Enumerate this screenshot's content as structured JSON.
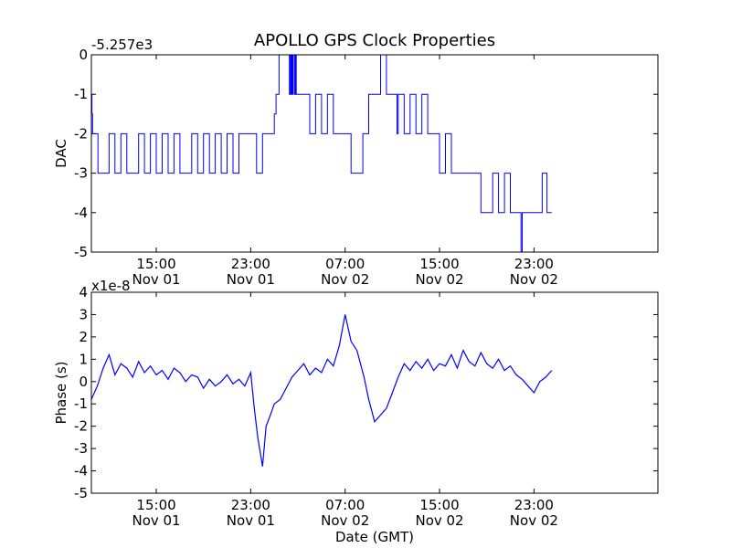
{
  "chart_data": [
    {
      "type": "line",
      "title": "APOLLO GPS Clock Properties",
      "ylabel": "DAC",
      "xlabel": "",
      "offset_label": "-5.257e3",
      "ylim": [
        -5,
        0
      ],
      "xlim": [
        9.5,
        57.5
      ],
      "yticks": [
        "-5",
        "-4",
        "-3",
        "-2",
        "-1",
        "0"
      ],
      "yticks_values": [
        -5,
        -4,
        -3,
        -2,
        -1,
        0
      ],
      "xticks": [
        {
          "x": 15,
          "time": "15:00",
          "date": "Nov 01"
        },
        {
          "x": 23,
          "time": "23:00",
          "date": "Nov 01"
        },
        {
          "x": 31,
          "time": "07:00",
          "date": "Nov 02"
        },
        {
          "x": 39,
          "time": "15:00",
          "date": "Nov 02"
        },
        {
          "x": 47,
          "time": "23:00",
          "date": "Nov 02"
        }
      ],
      "line_color": "#0000ff",
      "series": [
        {
          "x": [
            9.5,
            9.55,
            9.6,
            9.62,
            9.85,
            10.06,
            10.15,
            10.3,
            10.82,
            11.0,
            11.5,
            12.0,
            12.5,
            13.0,
            13.5,
            14.0,
            14.5,
            15.0,
            15.5,
            16.0,
            16.5,
            17.0,
            17.5,
            18.0,
            18.5,
            19.0,
            19.5,
            20.0,
            20.5,
            21.0,
            21.5,
            22.0,
            22.5,
            23.0,
            23.5,
            24.0,
            24.5,
            25.0,
            25.05,
            25.15,
            25.36,
            25.4,
            26.0,
            26.28,
            26.36,
            26.44,
            26.5,
            26.56,
            26.6,
            26.72,
            26.8,
            26.86,
            27.0,
            27.5,
            28.0,
            28.5,
            29.0,
            29.5,
            30.0,
            30.5,
            31.0,
            31.5,
            32.0,
            32.5,
            33.0,
            33.5,
            34.0,
            34.5,
            35.0,
            35.32,
            35.4,
            35.5,
            36.0,
            36.5,
            37.0,
            37.5,
            38.0,
            38.5,
            39.0,
            39.5,
            40.0,
            40.5,
            41.0,
            41.5,
            42.0,
            42.5,
            43.0,
            43.5,
            44.0,
            44.5,
            45.0,
            45.5,
            45.8,
            45.9,
            46.0,
            46.5,
            47.0,
            47.5,
            47.7,
            47.8,
            47.95,
            48.0,
            48.1,
            48.3,
            48.45,
            48.5
          ],
          "y": [
            -1,
            -1.5,
            -2,
            -2,
            -2,
            -3,
            -3,
            -3,
            -3,
            -2,
            -3,
            -2,
            -3,
            -3,
            -2,
            -3,
            -2,
            -3,
            -2,
            -3,
            -2,
            -3,
            -3,
            -2,
            -3,
            -2,
            -3,
            -2,
            -3,
            -2,
            -3,
            -2,
            -2,
            -2,
            -3,
            -2,
            -2,
            -1.5,
            -1.5,
            -1,
            -1,
            0,
            0,
            -1,
            0,
            -1,
            0,
            -1,
            0,
            -1,
            0,
            -1,
            -1,
            -1,
            -2,
            -1,
            -2,
            -1,
            -2,
            -2,
            -2,
            -3,
            -3,
            -2,
            -1,
            -1,
            0,
            -1,
            -1,
            -1,
            -2,
            -1,
            -2,
            -1,
            -2,
            -1,
            -2,
            -2,
            -3,
            -2,
            -3,
            -3,
            -3,
            -3,
            -3,
            -4,
            -4,
            -3,
            -4,
            -3,
            -4,
            -4,
            -4,
            -5,
            -4,
            -4,
            -4,
            -4,
            -3,
            -3,
            -3,
            -3,
            -4,
            -4,
            -4,
            -4
          ]
        }
      ]
    },
    {
      "type": "line",
      "title": "",
      "ylabel": "Phase (s)",
      "xlabel": "Date (GMT)",
      "offset_label": "x1e-8",
      "ylim": [
        -5,
        4
      ],
      "xlim": [
        9.5,
        57.5
      ],
      "yticks": [
        "-5",
        "-4",
        "-3",
        "-2",
        "-1",
        "0",
        "1",
        "2",
        "3",
        "4"
      ],
      "yticks_values": [
        -5,
        -4,
        -3,
        -2,
        -1,
        0,
        1,
        2,
        3,
        4
      ],
      "xticks": [
        {
          "x": 15,
          "time": "15:00",
          "date": "Nov 01"
        },
        {
          "x": 23,
          "time": "23:00",
          "date": "Nov 01"
        },
        {
          "x": 31,
          "time": "07:00",
          "date": "Nov 02"
        },
        {
          "x": 39,
          "time": "15:00",
          "date": "Nov 02"
        },
        {
          "x": 47,
          "time": "23:00",
          "date": "Nov 02"
        }
      ],
      "line_color": "#0000ff",
      "series": [
        {
          "x": [
            9.5,
            10.0,
            10.5,
            11.0,
            11.5,
            12.0,
            12.5,
            13.0,
            13.5,
            14.0,
            14.5,
            15.0,
            15.5,
            16.0,
            16.5,
            17.0,
            17.5,
            18.0,
            18.5,
            19.0,
            19.5,
            20.0,
            20.5,
            21.0,
            21.5,
            22.0,
            22.5,
            23.0,
            23.3,
            23.6,
            24.0,
            24.3,
            24.6,
            25.0,
            25.5,
            26.0,
            26.5,
            27.0,
            27.5,
            28.0,
            28.5,
            29.0,
            29.5,
            30.0,
            30.5,
            31.0,
            31.5,
            32.0,
            32.3,
            32.6,
            33.0,
            33.5,
            34.0,
            34.5,
            35.0,
            35.5,
            36.0,
            36.5,
            37.0,
            37.5,
            38.0,
            38.5,
            39.0,
            39.5,
            40.0,
            40.5,
            41.0,
            41.5,
            42.0,
            42.5,
            43.0,
            43.5,
            44.0,
            44.5,
            45.0,
            45.5,
            46.0,
            46.5,
            47.0,
            47.5,
            48.0,
            48.5
          ],
          "y": [
            -0.8,
            -0.2,
            0.6,
            1.2,
            0.3,
            0.8,
            0.6,
            0.2,
            0.9,
            0.4,
            0.7,
            0.3,
            0.5,
            0.1,
            0.6,
            0.4,
            0.0,
            0.3,
            0.2,
            -0.3,
            0.1,
            -0.2,
            0.0,
            0.3,
            -0.1,
            0.1,
            -0.2,
            0.4,
            -1.2,
            -2.5,
            -3.8,
            -2.0,
            -1.6,
            -1.0,
            -0.8,
            -0.3,
            0.2,
            0.5,
            0.8,
            0.3,
            0.6,
            0.4,
            1.0,
            0.7,
            1.6,
            3.0,
            1.8,
            1.4,
            0.8,
            0.2,
            -0.8,
            -1.8,
            -1.5,
            -1.2,
            -0.5,
            0.2,
            0.8,
            0.5,
            0.9,
            0.6,
            1.0,
            0.5,
            0.8,
            0.7,
            1.2,
            0.6,
            1.4,
            0.9,
            0.7,
            1.3,
            0.8,
            0.6,
            1.0,
            0.5,
            0.7,
            0.3,
            0.1,
            -0.2,
            -0.5,
            0.0,
            0.2,
            0.5
          ]
        }
      ]
    }
  ]
}
